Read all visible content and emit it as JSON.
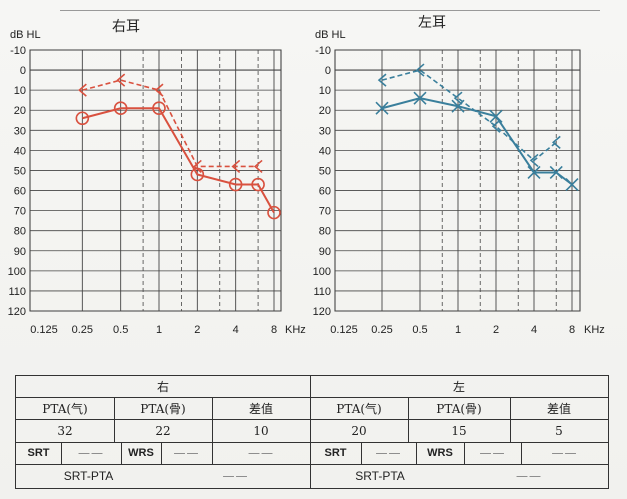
{
  "charts": {
    "right": {
      "title": "右耳"
    },
    "left": {
      "title": "左耳"
    }
  },
  "chart_data": [
    {
      "type": "line",
      "title": "右耳",
      "ylabel": "dB HL",
      "xunit": "KHz",
      "x_ticks": [
        "0.125",
        "0.25",
        "0.5",
        "1",
        "2",
        "4",
        "8"
      ],
      "y_ticks": [
        "-10",
        "0",
        "10",
        "20",
        "30",
        "40",
        "50",
        "60",
        "70",
        "80",
        "90",
        "100",
        "110",
        "120"
      ],
      "ylim": [
        -10,
        120
      ],
      "y_inverted": true,
      "color": "#d9513f",
      "series": [
        {
          "kind": "air",
          "marker": "circle",
          "style": "solid",
          "points": [
            [
              0.25,
              24
            ],
            [
              0.5,
              19
            ],
            [
              1,
              19
            ],
            [
              2,
              52
            ],
            [
              4,
              57
            ],
            [
              6,
              57
            ],
            [
              8,
              71
            ]
          ]
        },
        {
          "kind": "bone",
          "marker": "bracket",
          "style": "dashed",
          "points": [
            [
              0.25,
              10
            ],
            [
              0.5,
              5
            ],
            [
              1,
              10
            ],
            [
              2,
              48
            ],
            [
              4,
              48
            ],
            [
              6,
              48
            ]
          ]
        }
      ]
    },
    {
      "type": "line",
      "title": "左耳",
      "ylabel": "dB HL",
      "xunit": "KHz",
      "x_ticks": [
        "0.125",
        "0.25",
        "0.5",
        "1",
        "2",
        "4",
        "8"
      ],
      "y_ticks": [
        "-10",
        "0",
        "10",
        "20",
        "30",
        "40",
        "50",
        "60",
        "70",
        "80",
        "90",
        "100",
        "110",
        "120"
      ],
      "ylim": [
        -10,
        120
      ],
      "y_inverted": true,
      "color": "#3a7f9c",
      "series": [
        {
          "kind": "air",
          "marker": "x",
          "style": "solid",
          "points": [
            [
              0.25,
              19
            ],
            [
              0.5,
              14
            ],
            [
              1,
              18
            ],
            [
              2,
              23
            ],
            [
              4,
              51
            ],
            [
              6,
              51
            ],
            [
              8,
              57
            ]
          ]
        },
        {
          "kind": "bone",
          "marker": "bracket",
          "style": "dashed",
          "points": [
            [
              0.25,
              5
            ],
            [
              0.5,
              0
            ],
            [
              1,
              14
            ],
            [
              2,
              28
            ],
            [
              4,
              45
            ],
            [
              6,
              36
            ]
          ]
        }
      ]
    }
  ],
  "table": {
    "right_label": "右",
    "left_label": "左",
    "right": {
      "pta_air_label": "PTA(气)",
      "pta_air": "32",
      "pta_bone_label": "PTA(骨)",
      "pta_bone": "22",
      "diff_label": "差值",
      "diff": "10"
    },
    "left": {
      "pta_air_label": "PTA(气)",
      "pta_air": "20",
      "pta_bone_label": "PTA(骨)",
      "pta_bone": "15",
      "diff_label": "差值",
      "diff": "5"
    },
    "srt_label": "SRT",
    "wrs_label": "WRS",
    "srt_pta_label": "SRT-PTA",
    "empty_mark": "——"
  }
}
